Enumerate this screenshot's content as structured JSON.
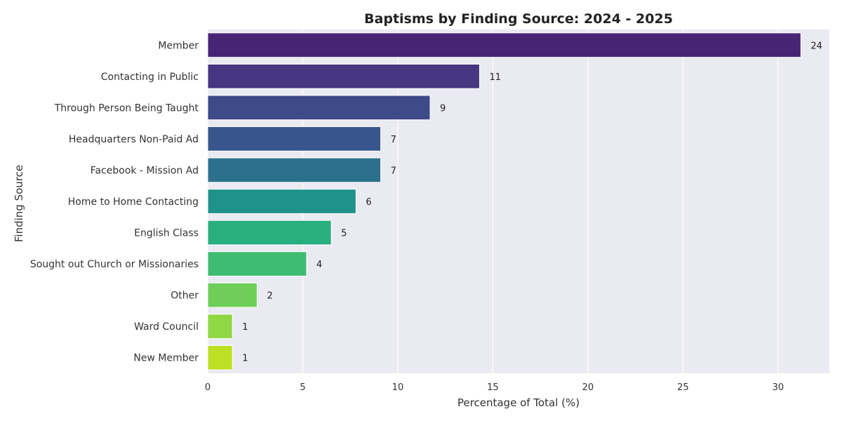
{
  "chart_data": {
    "type": "bar",
    "orientation": "horizontal",
    "title": "Baptisms by Finding Source: 2024 - 2025",
    "xlabel": "Percentage of Total (%)",
    "ylabel": "Finding Source",
    "categories": [
      "Member",
      "Contacting in Public",
      "Through Person Being Taught",
      "Headquarters Non-Paid Ad",
      "Facebook - Mission Ad",
      "Home to Home Contacting",
      "English Class",
      "Sought out Church or Missionaries",
      "Other",
      "Ward Council",
      "New Member"
    ],
    "values": [
      31.2,
      14.3,
      11.7,
      9.1,
      9.1,
      7.8,
      6.5,
      5.2,
      2.6,
      1.3,
      1.3
    ],
    "counts": [
      24,
      11,
      9,
      7,
      7,
      6,
      5,
      4,
      2,
      1,
      1
    ],
    "xlim": [
      0,
      32.7
    ],
    "xticks": [
      0,
      5,
      10,
      15,
      20,
      25,
      30
    ],
    "grid": true,
    "legend": "none",
    "colors": {
      "background": "#eaeaf2",
      "grid": "#ffffff",
      "bars": [
        "#482475",
        "#453781",
        "#3f4a89",
        "#39568c",
        "#2d708e",
        "#20928c",
        "#29af7f",
        "#3fbc73",
        "#6ece58",
        "#8fd744",
        "#bddf26"
      ]
    }
  }
}
